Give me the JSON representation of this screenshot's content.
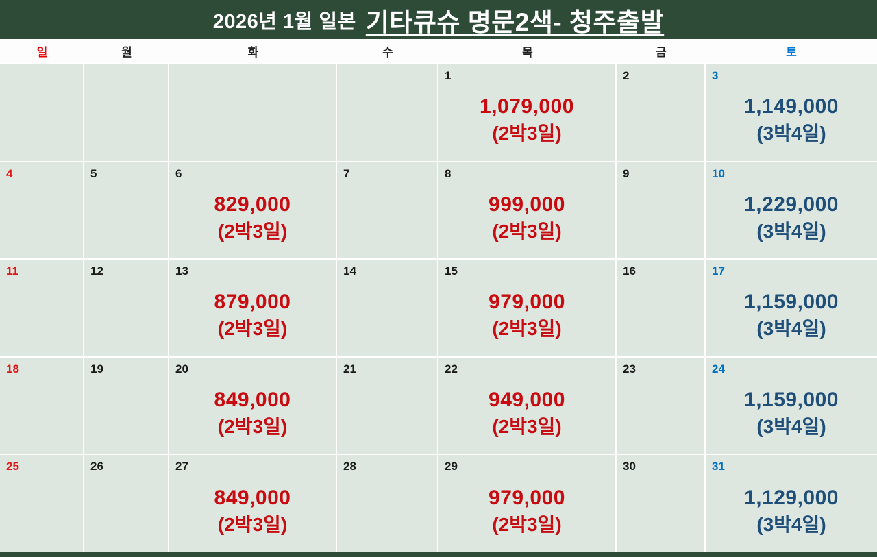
{
  "title": {
    "prefix": "2026년 1월 일본",
    "main": "기타큐슈 명문2색- 청주출발"
  },
  "weekday_header": [
    {
      "label": "일",
      "type": "sun"
    },
    {
      "label": "월",
      "type": "normal"
    },
    {
      "label": "화",
      "type": "normal"
    },
    {
      "label": "수",
      "type": "normal"
    },
    {
      "label": "목",
      "type": "normal"
    },
    {
      "label": "금",
      "type": "normal"
    },
    {
      "label": "토",
      "type": "sat"
    }
  ],
  "colors": {
    "banner_green": "#2e4b38",
    "cell_background": "#dde7e0",
    "sunday_red": "#e01515",
    "saturday_blue": "#0070c0",
    "price_red": "#c80b10",
    "price_navy": "#1f4e79"
  },
  "weeks": [
    [
      {
        "day": "",
        "day_type": "normal"
      },
      {
        "day": "",
        "day_type": "normal"
      },
      {
        "day": "",
        "day_type": "normal"
      },
      {
        "day": "",
        "day_type": "normal"
      },
      {
        "day": "1",
        "day_type": "normal",
        "price": "1,079,000",
        "duration": "(2박3일)",
        "price_type": "red"
      },
      {
        "day": "2",
        "day_type": "normal"
      },
      {
        "day": "3",
        "day_type": "sat",
        "price": "1,149,000",
        "duration": "(3박4일)",
        "price_type": "navy"
      }
    ],
    [
      {
        "day": "4",
        "day_type": "sun"
      },
      {
        "day": "5",
        "day_type": "normal"
      },
      {
        "day": "6",
        "day_type": "normal",
        "price": "829,000",
        "duration": "(2박3일)",
        "price_type": "red"
      },
      {
        "day": "7",
        "day_type": "normal"
      },
      {
        "day": "8",
        "day_type": "normal",
        "price": "999,000",
        "duration": "(2박3일)",
        "price_type": "red"
      },
      {
        "day": "9",
        "day_type": "normal"
      },
      {
        "day": "10",
        "day_type": "sat",
        "price": "1,229,000",
        "duration": "(3박4일)",
        "price_type": "navy"
      }
    ],
    [
      {
        "day": "11",
        "day_type": "sun"
      },
      {
        "day": "12",
        "day_type": "normal"
      },
      {
        "day": "13",
        "day_type": "normal",
        "price": "879,000",
        "duration": "(2박3일)",
        "price_type": "red"
      },
      {
        "day": "14",
        "day_type": "normal"
      },
      {
        "day": "15",
        "day_type": "normal",
        "price": "979,000",
        "duration": "(2박3일)",
        "price_type": "red"
      },
      {
        "day": "16",
        "day_type": "normal"
      },
      {
        "day": "17",
        "day_type": "sat",
        "price": "1,159,000",
        "duration": "(3박4일)",
        "price_type": "navy"
      }
    ],
    [
      {
        "day": "18",
        "day_type": "sun"
      },
      {
        "day": "19",
        "day_type": "normal"
      },
      {
        "day": "20",
        "day_type": "normal",
        "price": "849,000",
        "duration": "(2박3일)",
        "price_type": "red"
      },
      {
        "day": "21",
        "day_type": "normal"
      },
      {
        "day": "22",
        "day_type": "normal",
        "price": "949,000",
        "duration": "(2박3일)",
        "price_type": "red"
      },
      {
        "day": "23",
        "day_type": "normal"
      },
      {
        "day": "24",
        "day_type": "sat",
        "price": "1,159,000",
        "duration": "(3박4일)",
        "price_type": "navy"
      }
    ],
    [
      {
        "day": "25",
        "day_type": "sun"
      },
      {
        "day": "26",
        "day_type": "normal"
      },
      {
        "day": "27",
        "day_type": "normal",
        "price": "849,000",
        "duration": "(2박3일)",
        "price_type": "red"
      },
      {
        "day": "28",
        "day_type": "normal"
      },
      {
        "day": "29",
        "day_type": "normal",
        "price": "979,000",
        "duration": "(2박3일)",
        "price_type": "red"
      },
      {
        "day": "30",
        "day_type": "normal"
      },
      {
        "day": "31",
        "day_type": "sat",
        "price": "1,129,000",
        "duration": "(3박4일)",
        "price_type": "navy"
      }
    ]
  ]
}
